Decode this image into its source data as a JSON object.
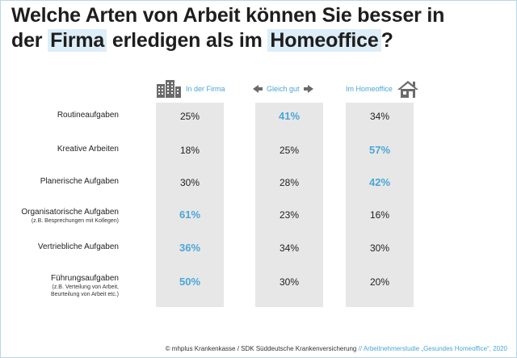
{
  "title": {
    "line1": "Welche Arten von Arbeit können Sie besser in",
    "line2_pre": "der ",
    "line2_hl1": "Firma",
    "line2_mid": " erledigen als im ",
    "line2_hl2": "Homeoffice",
    "line2_post": "?"
  },
  "colors": {
    "accent": "#4aa6d8",
    "column_bg": "#e7e7e7",
    "highlight_bg": "#ddeef8",
    "icon": "#6b6b6b"
  },
  "chart_data": {
    "type": "table",
    "columns": [
      {
        "name": "In der Firma",
        "icon": "office-buildings-icon"
      },
      {
        "name": "Gleich gut",
        "icon": "double-arrow-icon"
      },
      {
        "name": "Im Homeoffice",
        "icon": "house-icon"
      }
    ],
    "rows": [
      {
        "label": "Routineaufgaben",
        "sub": "",
        "values": [
          "25%",
          "41%",
          "34%"
        ],
        "highlight": 1
      },
      {
        "label": "Kreative Arbeiten",
        "sub": "",
        "values": [
          "18%",
          "25%",
          "57%"
        ],
        "highlight": 2
      },
      {
        "label": "Planerische Aufgaben",
        "sub": "",
        "values": [
          "30%",
          "28%",
          "42%"
        ],
        "highlight": 2
      },
      {
        "label": "Organisatorische Aufgaben",
        "sub": "(z.B. Besprechungen mit Kollegen)",
        "values": [
          "61%",
          "23%",
          "16%"
        ],
        "highlight": 0
      },
      {
        "label": "Vertriebliche Aufgaben",
        "sub": "",
        "values": [
          "36%",
          "34%",
          "30%"
        ],
        "highlight": 0
      },
      {
        "label": "Führungsaufgaben",
        "sub": "(z.B. Verteilung von Arbeit,\nBeurteilung von Arbeit etc.)",
        "values": [
          "50%",
          "30%",
          "20%"
        ],
        "highlight": 0
      }
    ]
  },
  "footer": {
    "source": "© mhplus Krankenkasse / SDK Süddeutsche Krankenversicherung",
    "study": "// Arbeitnehmerstudie „Gesundes Homeoffice“, 2020"
  }
}
